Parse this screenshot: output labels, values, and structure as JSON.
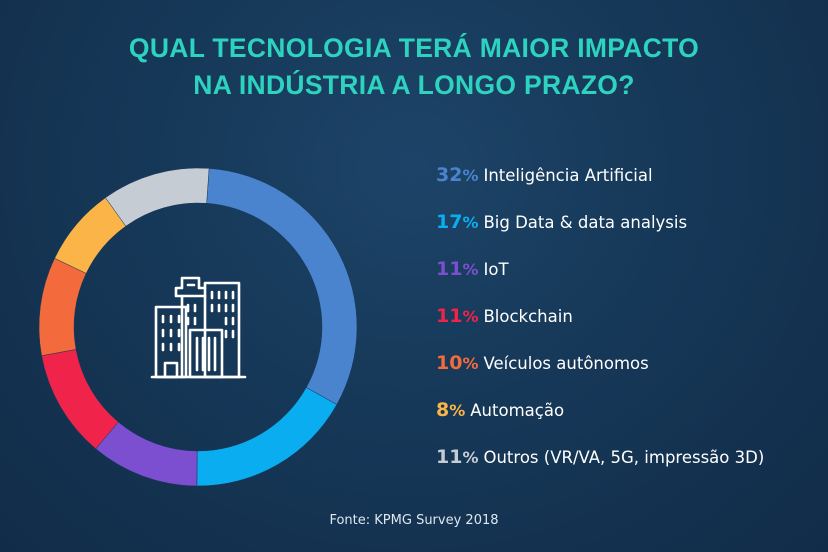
{
  "title_lines": [
    "QUAL TECNOLOGIA TERÁ MAIOR IMPACTO",
    "NA INDÚSTRIA A LONGO PRAZO?"
  ],
  "source": "Fonte: KPMG Survey 2018",
  "center_icon": "buildings-icon",
  "chart_data": {
    "type": "pie",
    "donut": true,
    "title": "QUAL TECNOLOGIA TERÁ MAIOR IMPACTO NA INDÚSTRIA A LONGO PRAZO?",
    "legend_position": "right",
    "categories": [
      "Inteligência Artificial",
      "Big Data & data analysis",
      "IoT",
      "Blockchain",
      "Veículos autônomos",
      "Automação",
      "Outros (VR/VA, 5G, impressão 3D)"
    ],
    "values": [
      32,
      17,
      11,
      11,
      10,
      8,
      11
    ],
    "value_labels": [
      "32",
      "17",
      "11",
      "11",
      "10",
      "8",
      "11"
    ],
    "unit": "%",
    "colors": [
      "#4a84cf",
      "#0aaef0",
      "#7b4fd0",
      "#f0234a",
      "#f36b3c",
      "#fbb448",
      "#c6ccd4"
    ]
  }
}
